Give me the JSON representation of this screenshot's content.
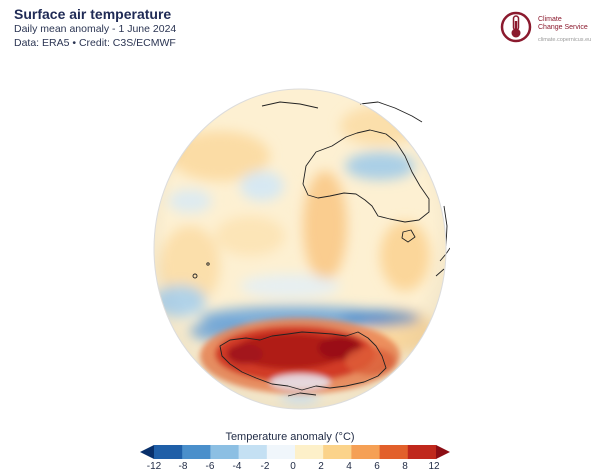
{
  "header": {
    "title": "Surface air temperature",
    "subtitle": "Daily mean anomaly - 1 June 2024",
    "credit": "Data: ERA5 • Credit: C3S/ECMWF"
  },
  "logo": {
    "line1": "Climate",
    "line2": "Change Service",
    "url": "climate.copernicus.eu",
    "color": "#8b1a2e"
  },
  "map": {
    "projection": "orthographic",
    "view": "Southern Hemisphere / Indian Ocean centred",
    "visible_regions": [
      "Australia",
      "Antarctica",
      "Southern Ocean",
      "Indian Ocean"
    ]
  },
  "legend": {
    "title": "Temperature anomaly (°C)",
    "ticks": [
      "-12",
      "-8",
      "-6",
      "-4",
      "-2",
      "0",
      "2",
      "4",
      "6",
      "8",
      "12"
    ],
    "colors": [
      "#08306b",
      "#1f5fa8",
      "#4a8fcb",
      "#8cbfe3",
      "#c4e0f3",
      "#f0f6fb",
      "#fdf0c9",
      "#fbd38a",
      "#f5a055",
      "#e2602b",
      "#c0281c",
      "#8c0d14"
    ]
  }
}
